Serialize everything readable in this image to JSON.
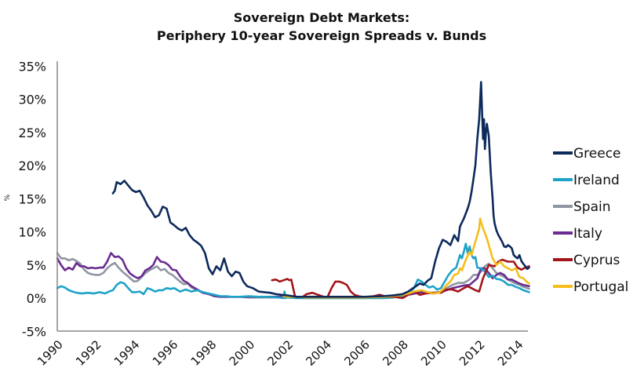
{
  "chart_data": {
    "type": "line",
    "title": "Sovereign Debt Markets:",
    "subtitle": "Periphery 10-year Sovereign Spreads v. Bunds",
    "xlabel": "",
    "ylabel": "%",
    "xlim": [
      1990,
      2014.6
    ],
    "ylim": [
      -5,
      35
    ],
    "grid": false,
    "legend_position": "right",
    "x_ticks": [
      "1990",
      "1992",
      "1994",
      "1996",
      "1998",
      "2000",
      "2002",
      "2004",
      "2006",
      "2008",
      "2010",
      "2012",
      "2014"
    ],
    "y_ticks": [
      "35%",
      "30%",
      "25%",
      "20%",
      "15%",
      "10%",
      "5%",
      "0%",
      "-5%"
    ],
    "series": [
      {
        "name": "Greece",
        "color": "#0d2a5c",
        "x": [
          1992.9,
          1993.0,
          1993.1,
          1993.3,
          1993.5,
          1993.7,
          1993.9,
          1994.1,
          1994.3,
          1994.5,
          1994.7,
          1994.9,
          1995.1,
          1995.3,
          1995.5,
          1995.7,
          1995.9,
          1996.1,
          1996.3,
          1996.5,
          1996.7,
          1996.9,
          1997.1,
          1997.3,
          1997.5,
          1997.7,
          1997.9,
          1998.1,
          1998.3,
          1998.5,
          1998.7,
          1998.9,
          1999.1,
          1999.3,
          1999.5,
          1999.7,
          1999.9,
          2000.2,
          2000.5,
          2000.8,
          2001.1,
          2001.4,
          2001.7,
          2002.0,
          2002.5,
          2003.0,
          2004.0,
          2005.0,
          2006.0,
          2007.0,
          2007.5,
          2008.0,
          2008.3,
          2008.6,
          2008.9,
          2009.1,
          2009.3,
          2009.5,
          2009.7,
          2009.9,
          2010.1,
          2010.3,
          2010.5,
          2010.7,
          2010.9,
          2011.0,
          2011.2,
          2011.4,
          2011.5,
          2011.6,
          2011.7,
          2011.8,
          2011.9,
          2012.0,
          2012.1,
          2012.15,
          2012.2,
          2012.25,
          2012.3,
          2012.35,
          2012.4,
          2012.5,
          2012.6,
          2012.7,
          2012.75,
          2012.8,
          2012.9,
          2013.0,
          2013.1,
          2013.2,
          2013.3,
          2013.4,
          2013.5,
          2013.6,
          2013.7,
          2013.8,
          2013.9,
          2014.0,
          2014.1,
          2014.2,
          2014.3,
          2014.4,
          2014.5,
          2014.6
        ],
        "y": [
          15.8,
          16.2,
          17.5,
          17.2,
          17.7,
          17.0,
          16.3,
          16.0,
          16.2,
          15.2,
          14.0,
          13.2,
          12.2,
          12.5,
          13.8,
          13.5,
          11.4,
          11.0,
          10.5,
          10.2,
          10.6,
          9.5,
          8.8,
          8.4,
          7.9,
          6.8,
          4.5,
          3.6,
          4.8,
          4.2,
          6.0,
          4.0,
          3.3,
          4.0,
          3.8,
          2.5,
          1.8,
          1.5,
          1.0,
          0.9,
          0.8,
          0.6,
          0.5,
          0.4,
          0.2,
          0.2,
          0.2,
          0.2,
          0.2,
          0.3,
          0.4,
          0.6,
          1.0,
          1.6,
          2.2,
          2.0,
          2.6,
          3.0,
          5.5,
          7.5,
          8.8,
          8.5,
          8.0,
          9.5,
          8.6,
          10.8,
          12.0,
          13.5,
          14.5,
          16.0,
          18.0,
          20.0,
          24.0,
          27.0,
          32.6,
          28.0,
          24.0,
          27.0,
          22.5,
          25.0,
          26.3,
          24.5,
          19.0,
          15.0,
          12.5,
          11.3,
          10.2,
          9.5,
          9.0,
          8.5,
          7.8,
          7.7,
          8.0,
          7.8,
          7.5,
          6.5,
          6.2,
          6.0,
          6.5,
          5.6,
          5.2,
          4.8,
          4.4,
          4.6
        ]
      },
      {
        "name": "Ireland",
        "color": "#1ea3c8",
        "x": [
          1990.0,
          1990.2,
          1990.4,
          1990.6,
          1990.8,
          1991.0,
          1991.3,
          1991.6,
          1991.9,
          1992.2,
          1992.5,
          1992.7,
          1992.9,
          1993.1,
          1993.3,
          1993.5,
          1993.7,
          1993.9,
          1994.1,
          1994.3,
          1994.5,
          1994.7,
          1994.9,
          1995.1,
          1995.3,
          1995.5,
          1995.7,
          1995.9,
          1996.1,
          1996.4,
          1996.7,
          1997.0,
          1997.3,
          1997.6,
          1997.9,
          1998.2,
          1998.5,
          1998.8,
          1999.1,
          1999.5,
          2000.0,
          2000.5,
          2001.0,
          2001.5,
          2001.8,
          2001.85,
          2001.9,
          2002.0,
          2002.5,
          2003.0,
          2004.0,
          2005.0,
          2006.0,
          2007.0,
          2007.5,
          2008.0,
          2008.3,
          2008.6,
          2008.8,
          2009.0,
          2009.2,
          2009.4,
          2009.6,
          2009.8,
          2010.0,
          2010.2,
          2010.4,
          2010.6,
          2010.8,
          2011.0,
          2011.1,
          2011.2,
          2011.3,
          2011.4,
          2011.5,
          2011.6,
          2011.7,
          2011.8,
          2011.9,
          2012.1,
          2012.3,
          2012.5,
          2012.7,
          2012.9,
          2013.1,
          2013.3,
          2013.5,
          2013.7,
          2013.9,
          2014.1,
          2014.3,
          2014.6
        ],
        "y": [
          1.5,
          1.8,
          1.6,
          1.2,
          1.0,
          0.8,
          0.7,
          0.8,
          0.7,
          0.9,
          0.7,
          1.0,
          1.2,
          2.0,
          2.4,
          2.2,
          1.5,
          0.9,
          0.9,
          1.0,
          0.6,
          1.5,
          1.3,
          1.0,
          1.2,
          1.2,
          1.5,
          1.4,
          1.5,
          1.0,
          1.3,
          1.0,
          1.2,
          0.9,
          0.7,
          0.5,
          0.3,
          0.3,
          0.2,
          0.2,
          0.3,
          0.2,
          0.2,
          0.1,
          0.0,
          1.0,
          0.0,
          0.1,
          0.0,
          0.0,
          0.0,
          0.0,
          0.0,
          0.0,
          0.1,
          0.3,
          0.8,
          1.5,
          2.8,
          2.5,
          2.0,
          1.6,
          1.8,
          1.3,
          1.5,
          2.5,
          3.5,
          4.2,
          4.6,
          6.5,
          6.0,
          7.0,
          8.2,
          6.8,
          7.8,
          6.5,
          6.0,
          6.2,
          4.6,
          4.5,
          4.0,
          3.2,
          3.4,
          2.9,
          2.8,
          2.5,
          2.0,
          2.0,
          1.7,
          1.5,
          1.2,
          0.9
        ]
      },
      {
        "name": "Spain",
        "color": "#8f96a3",
        "x": [
          1990.0,
          1990.2,
          1990.4,
          1990.6,
          1990.8,
          1991.0,
          1991.2,
          1991.4,
          1991.6,
          1991.8,
          1992.0,
          1992.2,
          1992.4,
          1992.6,
          1992.8,
          1993.0,
          1993.2,
          1993.4,
          1993.6,
          1993.8,
          1994.0,
          1994.2,
          1994.4,
          1994.6,
          1994.8,
          1995.0,
          1995.2,
          1995.4,
          1995.6,
          1995.8,
          1996.0,
          1996.2,
          1996.4,
          1996.6,
          1996.8,
          1997.0,
          1997.3,
          1997.6,
          1997.9,
          1998.2,
          1998.5,
          1999.0,
          1999.5,
          2000.0,
          2001.0,
          2002.0,
          2003.0,
          2004.0,
          2005.0,
          2006.0,
          2007.0,
          2008.0,
          2008.5,
          2009.0,
          2009.3,
          2009.6,
          2010.0,
          2010.3,
          2010.6,
          2010.9,
          2011.2,
          2011.5,
          2011.7,
          2011.9,
          2012.1,
          2012.3,
          2012.5,
          2012.7,
          2012.9,
          2013.1,
          2013.3,
          2013.5,
          2013.7,
          2013.9,
          2014.1,
          2014.3,
          2014.6
        ],
        "y": [
          6.8,
          6.0,
          6.0,
          5.7,
          5.9,
          5.6,
          5.2,
          4.3,
          3.8,
          3.6,
          3.5,
          3.5,
          3.8,
          4.5,
          5.0,
          5.3,
          4.6,
          4.0,
          3.5,
          3.0,
          2.5,
          2.6,
          3.2,
          3.8,
          4.2,
          4.5,
          4.8,
          4.2,
          4.4,
          3.8,
          3.5,
          3.0,
          2.5,
          2.1,
          2.2,
          1.6,
          1.2,
          0.8,
          0.6,
          0.3,
          0.2,
          0.2,
          0.2,
          0.1,
          0.1,
          0.1,
          0.0,
          0.0,
          0.0,
          0.0,
          0.1,
          0.3,
          0.7,
          1.0,
          0.9,
          0.8,
          1.0,
          1.5,
          2.0,
          2.3,
          2.3,
          2.8,
          3.5,
          3.5,
          4.0,
          4.8,
          5.2,
          4.5,
          3.8,
          3.5,
          3.2,
          2.8,
          2.5,
          2.2,
          2.0,
          1.7,
          1.4
        ]
      },
      {
        "name": "Italy",
        "color": "#6a2c91",
        "x": [
          1990.0,
          1990.2,
          1990.4,
          1990.6,
          1990.8,
          1991.0,
          1991.2,
          1991.4,
          1991.6,
          1991.8,
          1992.0,
          1992.2,
          1992.4,
          1992.6,
          1992.8,
          1993.0,
          1993.2,
          1993.4,
          1993.6,
          1993.8,
          1994.0,
          1994.2,
          1994.4,
          1994.6,
          1994.8,
          1995.0,
          1995.2,
          1995.4,
          1995.6,
          1995.8,
          1996.0,
          1996.2,
          1996.4,
          1996.6,
          1996.8,
          1997.0,
          1997.3,
          1997.6,
          1997.9,
          1998.2,
          1998.5,
          1999.0,
          1999.5,
          2000.0,
          2001.0,
          2002.0,
          2003.0,
          2004.0,
          2005.0,
          2006.0,
          2007.0,
          2008.0,
          2008.5,
          2009.0,
          2009.3,
          2009.6,
          2010.0,
          2010.3,
          2010.6,
          2010.9,
          2011.2,
          2011.5,
          2011.7,
          2011.9,
          2012.1,
          2012.3,
          2012.5,
          2012.7,
          2012.9,
          2013.1,
          2013.3,
          2013.5,
          2013.7,
          2013.9,
          2014.1,
          2014.3,
          2014.6
        ],
        "y": [
          6.0,
          5.0,
          4.2,
          4.6,
          4.3,
          5.3,
          4.8,
          4.8,
          4.5,
          4.6,
          4.5,
          4.6,
          4.6,
          5.5,
          6.8,
          6.2,
          6.3,
          5.8,
          4.5,
          3.7,
          3.3,
          3.0,
          3.3,
          4.2,
          4.5,
          5.0,
          6.2,
          5.5,
          5.4,
          5.0,
          4.3,
          4.2,
          3.3,
          2.6,
          2.3,
          1.8,
          1.3,
          0.8,
          0.6,
          0.3,
          0.2,
          0.2,
          0.2,
          0.2,
          0.2,
          0.2,
          0.1,
          0.1,
          0.1,
          0.1,
          0.2,
          0.4,
          0.6,
          0.9,
          0.8,
          0.7,
          0.9,
          1.2,
          1.5,
          1.7,
          1.9,
          2.0,
          2.5,
          3.0,
          4.5,
          4.5,
          3.8,
          3.0,
          3.5,
          3.8,
          3.5,
          2.8,
          2.8,
          2.5,
          2.2,
          2.0,
          1.8
        ]
      },
      {
        "name": "Cyprus",
        "color": "#a3151b",
        "x": [
          2001.2,
          2001.4,
          2001.6,
          2001.8,
          2002.0,
          2002.1,
          2002.2,
          2002.4,
          2002.8,
          2003.0,
          2003.3,
          2003.6,
          2003.9,
          2004.1,
          2004.3,
          2004.5,
          2004.7,
          2004.9,
          2005.1,
          2005.3,
          2005.5,
          2005.7,
          2005.9,
          2006.2,
          2006.5,
          2006.8,
          2007.2,
          2007.6,
          2008.0,
          2008.3,
          2008.6,
          2008.9,
          2009.2,
          2009.6,
          2010.0,
          2010.3,
          2010.6,
          2010.9,
          2011.2,
          2011.4,
          2011.6,
          2011.8,
          2012.0,
          2012.2,
          2012.5,
          2012.8,
          2013.0,
          2013.2,
          2013.5,
          2013.8,
          2014.0,
          2014.2,
          2014.4,
          2014.6
        ],
        "y": [
          2.7,
          2.8,
          2.5,
          2.7,
          2.9,
          2.7,
          2.8,
          0.2,
          0.2,
          0.6,
          0.8,
          0.5,
          0.2,
          0.2,
          1.5,
          2.5,
          2.5,
          2.3,
          2.0,
          1.0,
          0.5,
          0.3,
          0.2,
          0.2,
          0.3,
          0.5,
          0.2,
          0.2,
          0.0,
          0.5,
          1.0,
          0.5,
          0.7,
          0.8,
          0.8,
          1.3,
          1.3,
          1.0,
          1.5,
          1.8,
          1.5,
          1.2,
          1.0,
          3.0,
          5.0,
          4.8,
          5.5,
          5.8,
          5.5,
          5.5,
          4.6,
          4.3,
          4.6,
          4.8
        ]
      },
      {
        "name": "Portugal",
        "color": "#f5be1c",
        "x": [
          2001.8,
          2002.0,
          2002.5,
          2003.0,
          2004.0,
          2005.0,
          2006.0,
          2007.0,
          2007.5,
          2008.0,
          2008.3,
          2008.6,
          2009.0,
          2009.3,
          2009.6,
          2009.9,
          2010.1,
          2010.3,
          2010.5,
          2010.7,
          2010.9,
          2011.0,
          2011.1,
          2011.3,
          2011.5,
          2011.6,
          2011.8,
          2011.9,
          2012.0,
          2012.05,
          2012.1,
          2012.2,
          2012.3,
          2012.4,
          2012.5,
          2012.7,
          2012.9,
          2013.1,
          2013.3,
          2013.5,
          2013.7,
          2013.9,
          2014.1,
          2014.3,
          2014.5,
          2014.6
        ],
        "y": [
          0.3,
          0.2,
          0.2,
          0.1,
          0.1,
          0.1,
          0.1,
          0.2,
          0.3,
          0.5,
          0.7,
          1.0,
          1.2,
          0.9,
          0.7,
          0.8,
          1.3,
          2.0,
          2.5,
          3.5,
          3.7,
          4.5,
          4.2,
          5.8,
          7.0,
          6.5,
          8.5,
          9.5,
          10.5,
          12.0,
          11.5,
          10.5,
          9.8,
          9.0,
          8.0,
          6.0,
          5.0,
          5.5,
          4.8,
          4.5,
          4.2,
          4.5,
          3.2,
          3.0,
          2.4,
          2.2
        ]
      }
    ]
  }
}
